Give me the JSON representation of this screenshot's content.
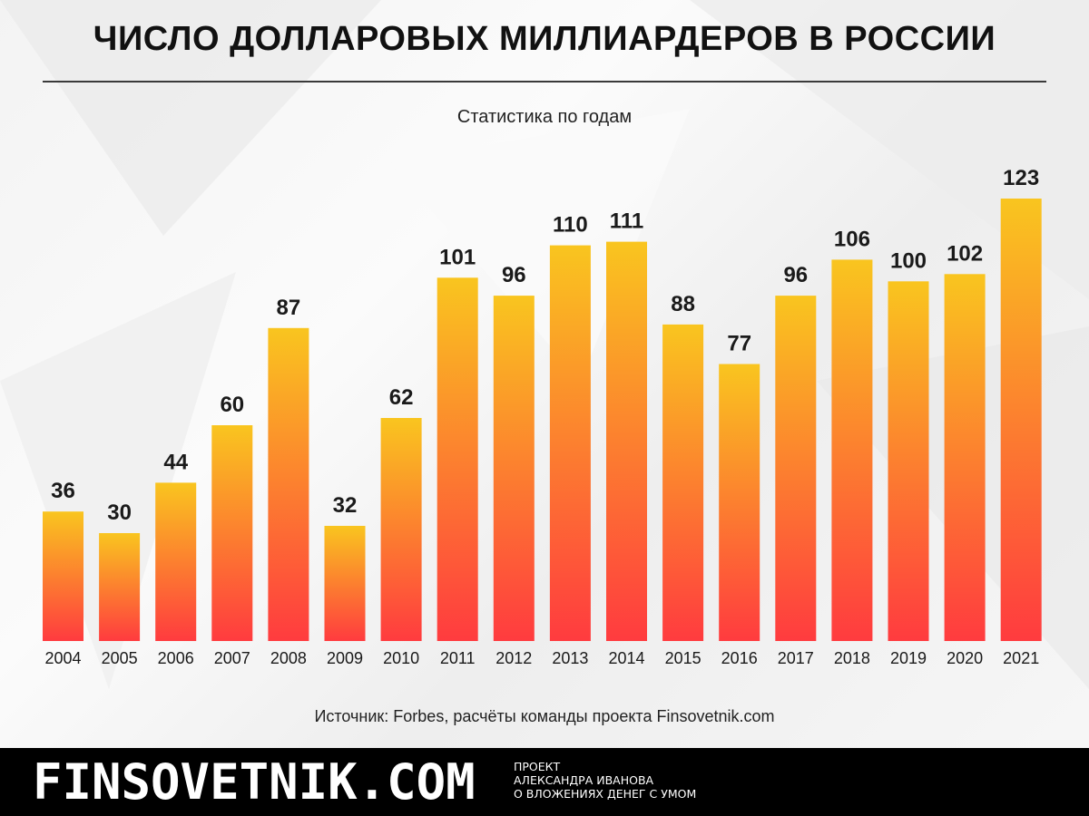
{
  "title": "ЧИСЛО ДОЛЛАРОВЫХ МИЛЛИАРДЕРОВ В РОССИИ",
  "subtitle": "Статистика по годам",
  "source": "Источник: Forbes, расчёты команды проекта Finsovetnik.com",
  "footer": {
    "brand": "FINSOVETNIK.COM",
    "tagline": [
      "ПРОЕКТ",
      "АЛЕКСАНДРА ИВАНОВА",
      "О ВЛОЖЕНИЯХ ДЕНЕГ С УМОМ"
    ]
  },
  "colors": {
    "bar_top": "#F9C51F",
    "bar_bottom": "#FF3B3F",
    "text": "#1a1a1a",
    "footer_bg": "#000000"
  },
  "chart_data": {
    "type": "bar",
    "title": "ЧИСЛО ДОЛЛАРОВЫХ МИЛЛИАРДЕРОВ В РОССИИ",
    "subtitle": "Статистика по годам",
    "xlabel": "",
    "ylabel": "",
    "ylim": [
      0,
      123
    ],
    "grid": false,
    "categories": [
      "2004",
      "2005",
      "2006",
      "2007",
      "2008",
      "2009",
      "2010",
      "2011",
      "2012",
      "2013",
      "2014",
      "2015",
      "2016",
      "2017",
      "2018",
      "2019",
      "2020",
      "2021"
    ],
    "values": [
      36,
      30,
      44,
      60,
      87,
      32,
      62,
      101,
      96,
      110,
      111,
      88,
      77,
      96,
      106,
      100,
      102,
      123
    ]
  }
}
